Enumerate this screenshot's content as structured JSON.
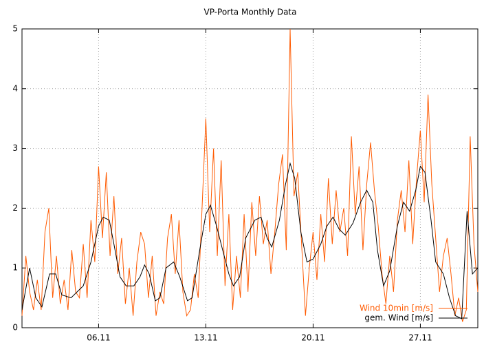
{
  "chart_data": {
    "type": "line",
    "title": "VP-Porta Monthly Data",
    "xlim": [
      1,
      30.75
    ],
    "ylim": [
      0,
      5
    ],
    "xticks": [
      {
        "value": 6,
        "label": "06.11"
      },
      {
        "value": 13,
        "label": "13.11"
      },
      {
        "value": 20,
        "label": "20.11"
      },
      {
        "value": 27,
        "label": "27.11"
      }
    ],
    "yticks": [
      0,
      1,
      2,
      3,
      4,
      5
    ],
    "grid": true,
    "legend": "bottom-right",
    "series": [
      {
        "name": "Wind 10min [m/s]",
        "color": "#ff5a00",
        "x": [
          1,
          1.25,
          1.5,
          1.75,
          2,
          2.25,
          2.5,
          2.75,
          3,
          3.25,
          3.5,
          3.75,
          4,
          4.25,
          4.5,
          4.75,
          5,
          5.25,
          5.5,
          5.75,
          6,
          6.25,
          6.5,
          6.75,
          7,
          7.25,
          7.5,
          7.75,
          8,
          8.25,
          8.5,
          8.75,
          9,
          9.25,
          9.5,
          9.75,
          10,
          10.25,
          10.5,
          10.75,
          11,
          11.25,
          11.5,
          11.75,
          12,
          12.25,
          12.5,
          12.75,
          13,
          13.25,
          13.5,
          13.75,
          14,
          14.25,
          14.5,
          14.75,
          15,
          15.25,
          15.5,
          15.75,
          16,
          16.25,
          16.5,
          16.75,
          17,
          17.25,
          17.5,
          17.75,
          18,
          18.25,
          18.5,
          18.75,
          19,
          19.25,
          19.5,
          19.75,
          20,
          20.25,
          20.5,
          20.75,
          21,
          21.25,
          21.5,
          21.75,
          22,
          22.25,
          22.5,
          22.75,
          23,
          23.25,
          23.5,
          23.75,
          24,
          24.25,
          24.5,
          24.75,
          25,
          25.25,
          25.5,
          25.75,
          26,
          26.25,
          26.5,
          26.75,
          27,
          27.25,
          27.5,
          27.75,
          28,
          28.25,
          28.5,
          28.75,
          29,
          29.25,
          29.5,
          29.75,
          30,
          30.25,
          30.5,
          30.75
        ],
        "values": [
          0.2,
          1.2,
          0.6,
          0.3,
          0.8,
          0.3,
          1.6,
          2.0,
          0.5,
          1.2,
          0.4,
          0.8,
          0.3,
          1.3,
          0.6,
          0.5,
          1.4,
          0.5,
          1.8,
          1.1,
          2.7,
          1.5,
          2.6,
          1.2,
          2.2,
          0.9,
          1.5,
          0.4,
          1.0,
          0.2,
          1.1,
          1.6,
          1.4,
          0.5,
          1.2,
          0.2,
          0.6,
          0.4,
          1.5,
          1.9,
          0.9,
          1.8,
          0.6,
          0.2,
          0.3,
          0.9,
          0.5,
          2.0,
          3.5,
          1.6,
          3.0,
          1.2,
          2.8,
          0.7,
          1.9,
          0.3,
          1.2,
          0.5,
          1.9,
          0.6,
          2.1,
          1.2,
          2.2,
          1.4,
          1.8,
          0.9,
          1.6,
          2.4,
          2.9,
          1.3,
          5.0,
          2.2,
          2.6,
          1.4,
          0.2,
          1.0,
          1.6,
          0.8,
          1.9,
          1.1,
          2.5,
          1.4,
          2.3,
          1.6,
          2.0,
          1.2,
          3.2,
          1.9,
          2.7,
          1.3,
          2.4,
          3.1,
          2.3,
          1.7,
          0.9,
          0.4,
          1.2,
          0.6,
          1.8,
          2.3,
          1.6,
          2.8,
          1.4,
          2.5,
          3.3,
          2.1,
          3.9,
          2.4,
          1.5,
          0.6,
          1.2,
          1.5,
          0.9,
          0.2,
          0.5,
          0.1,
          0.3,
          3.2,
          1.4,
          0.6
        ]
      },
      {
        "name": "gem. Wind [m/s]",
        "color": "#000000",
        "x": [
          1,
          1.5,
          1.9,
          2.3,
          2.8,
          3.2,
          3.6,
          4.2,
          4.6,
          5,
          5.5,
          6,
          6.3,
          6.7,
          7,
          7.4,
          7.8,
          8.3,
          8.7,
          9,
          9.3,
          9.7,
          10,
          10.4,
          10.9,
          11.3,
          11.8,
          12.1,
          12.6,
          13,
          13.3,
          13.7,
          14.1,
          14.5,
          14.8,
          15.2,
          15.6,
          16.2,
          16.6,
          17,
          17.3,
          17.8,
          18.2,
          18.5,
          18.8,
          19.2,
          19.6,
          20,
          20.5,
          20.9,
          21.3,
          21.7,
          22.1,
          22.6,
          23.1,
          23.5,
          23.9,
          24.2,
          24.6,
          25,
          25.5,
          25.9,
          26.3,
          26.7,
          27,
          27.3,
          27.7,
          28,
          28.5,
          28.9,
          29.3,
          29.7,
          30.05,
          30.4,
          30.75
        ],
        "values": [
          0.3,
          1.0,
          0.5,
          0.35,
          0.9,
          0.9,
          0.55,
          0.5,
          0.6,
          0.7,
          1.1,
          1.7,
          1.85,
          1.8,
          1.4,
          0.85,
          0.7,
          0.7,
          0.85,
          1.05,
          0.9,
          0.45,
          0.5,
          1.0,
          1.1,
          0.85,
          0.45,
          0.5,
          1.3,
          1.9,
          2.05,
          1.7,
          1.3,
          0.9,
          0.7,
          0.85,
          1.5,
          1.8,
          1.85,
          1.5,
          1.35,
          1.8,
          2.4,
          2.75,
          2.5,
          1.6,
          1.1,
          1.15,
          1.4,
          1.7,
          1.85,
          1.65,
          1.55,
          1.75,
          2.1,
          2.3,
          2.1,
          1.3,
          0.7,
          0.95,
          1.7,
          2.1,
          1.95,
          2.3,
          2.7,
          2.6,
          1.8,
          1.1,
          0.9,
          0.5,
          0.2,
          0.15,
          1.95,
          0.9,
          1.0
        ]
      }
    ]
  }
}
